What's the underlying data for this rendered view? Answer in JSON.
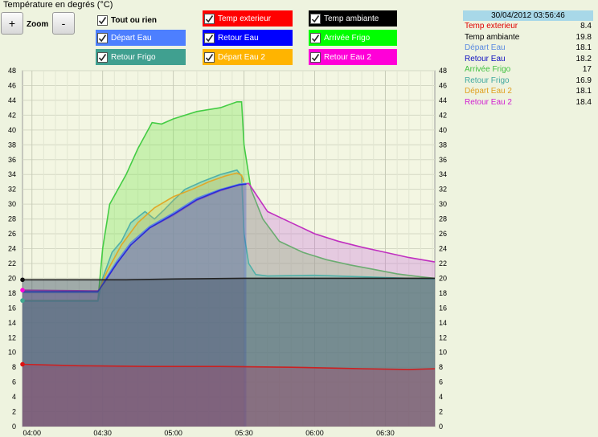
{
  "header": {
    "title": "Température en degrés (°C)"
  },
  "zoom": {
    "plus": "+",
    "label": "Zoom",
    "minus": "-"
  },
  "toggles": [
    {
      "label": "Tout ou rien",
      "bg": "",
      "fg": "#000000",
      "checked": true
    },
    {
      "label": "Temp exterieur",
      "bg": "#ff0000",
      "fg": "#ffffff",
      "checked": true
    },
    {
      "label": "Temp ambiante",
      "bg": "#000000",
      "fg": "#ffffff",
      "checked": true
    },
    {
      "label": "Départ Eau",
      "bg": "#4d7fff",
      "fg": "#ffffff",
      "checked": true
    },
    {
      "label": "Retour Eau",
      "bg": "#0000ff",
      "fg": "#ffffff",
      "checked": true
    },
    {
      "label": "Arrivée Frigo",
      "bg": "#00ff00",
      "fg": "#ffffff",
      "checked": true
    },
    {
      "label": "Retour Frigo",
      "bg": "#40a090",
      "fg": "#ffffff",
      "checked": true
    },
    {
      "label": "Départ Eau 2",
      "bg": "#ffb400",
      "fg": "#ffffff",
      "checked": true
    },
    {
      "label": "Retour Eau 2",
      "bg": "#ff00d8",
      "fg": "#ffffff",
      "checked": true
    }
  ],
  "readout": {
    "timestamp": "30/04/2012 03:56:46",
    "rows": [
      {
        "name": "Temp exterieur",
        "value": "8.4",
        "color": "#e00000"
      },
      {
        "name": "Temp ambiante",
        "value": "19.8",
        "color": "#000000"
      },
      {
        "name": "Départ Eau",
        "value": "18.1",
        "color": "#5a8ae0"
      },
      {
        "name": "Retour Eau",
        "value": "18.2",
        "color": "#1010c0"
      },
      {
        "name": "Arrivée Frigo",
        "value": "17",
        "color": "#40c040"
      },
      {
        "name": "Retour Frigo",
        "value": "16.9",
        "color": "#40a8a0"
      },
      {
        "name": "Départ Eau 2",
        "value": "18.1",
        "color": "#e0a020"
      },
      {
        "name": "Retour Eau 2",
        "value": "18.4",
        "color": "#d020d0"
      }
    ]
  },
  "chart_data": {
    "type": "area",
    "xlabel": "",
    "ylabel": "",
    "x_ticks": [
      "04:00",
      "04:30",
      "05:00",
      "05:30",
      "06:00",
      "06:30"
    ],
    "x_tick_minutes": [
      240,
      270,
      300,
      330,
      360,
      390
    ],
    "xlim_minutes": [
      236,
      411
    ],
    "ylim": [
      0,
      48
    ],
    "y_ticks": [
      0,
      2,
      4,
      6,
      8,
      10,
      12,
      14,
      16,
      18,
      20,
      22,
      24,
      26,
      28,
      30,
      32,
      34,
      36,
      38,
      40,
      42,
      44,
      46,
      48
    ],
    "grid": true,
    "series": [
      {
        "name": "Arrivée Frigo",
        "color": "#44cc44",
        "fill": "rgba(120,230,80,0.35)",
        "points": [
          [
            236,
            17
          ],
          [
            268,
            17
          ],
          [
            270,
            24
          ],
          [
            273,
            30
          ],
          [
            280,
            34
          ],
          [
            285,
            37.5
          ],
          [
            291,
            41
          ],
          [
            295,
            40.8
          ],
          [
            300,
            41.5
          ],
          [
            305,
            42
          ],
          [
            310,
            42.5
          ],
          [
            320,
            43
          ],
          [
            327,
            43.8
          ],
          [
            329,
            43.8
          ],
          [
            330,
            38
          ],
          [
            333,
            32
          ],
          [
            338,
            28
          ],
          [
            345,
            25
          ],
          [
            355,
            23.5
          ],
          [
            365,
            22.5
          ],
          [
            375,
            21.8
          ],
          [
            385,
            21.2
          ],
          [
            395,
            20.6
          ],
          [
            405,
            20.2
          ],
          [
            411,
            20
          ]
        ]
      },
      {
        "name": "Retour Eau 2",
        "color": "#c030c0",
        "fill": "rgba(200,100,220,0.30)",
        "points": [
          [
            236,
            18.4
          ],
          [
            268,
            18.3
          ],
          [
            271,
            19.5
          ],
          [
            276,
            22
          ],
          [
            282,
            24.5
          ],
          [
            290,
            26.8
          ],
          [
            300,
            28.5
          ],
          [
            310,
            30.5
          ],
          [
            320,
            31.8
          ],
          [
            328,
            32.6
          ],
          [
            332,
            32.8
          ],
          [
            340,
            29
          ],
          [
            350,
            27.5
          ],
          [
            360,
            26
          ],
          [
            370,
            25
          ],
          [
            380,
            24.2
          ],
          [
            390,
            23.5
          ],
          [
            400,
            22.8
          ],
          [
            411,
            22.2
          ]
        ]
      },
      {
        "name": "Retour Frigo",
        "color": "#50b0a8",
        "fill": "rgba(90,175,170,0.30)",
        "points": [
          [
            236,
            16.9
          ],
          [
            268,
            16.9
          ],
          [
            270,
            20
          ],
          [
            274,
            23.5
          ],
          [
            278,
            25
          ],
          [
            282,
            27.5
          ],
          [
            288,
            29
          ],
          [
            292,
            28
          ],
          [
            296,
            29.2
          ],
          [
            300,
            30.5
          ],
          [
            305,
            32
          ],
          [
            312,
            33
          ],
          [
            320,
            34
          ],
          [
            327,
            34.6
          ],
          [
            329,
            33.8
          ],
          [
            330,
            26
          ],
          [
            332,
            22
          ],
          [
            335,
            20.5
          ],
          [
            340,
            20.3
          ],
          [
            360,
            20.4
          ],
          [
            380,
            20.2
          ],
          [
            400,
            20
          ],
          [
            411,
            19.9
          ]
        ]
      },
      {
        "name": "Départ Eau 2",
        "color": "#e0a828",
        "fill": "rgba(240,190,60,0.22)",
        "points": [
          [
            236,
            18.1
          ],
          [
            268,
            18.1
          ],
          [
            272,
            21
          ],
          [
            278,
            24.5
          ],
          [
            285,
            27.5
          ],
          [
            292,
            29.5
          ],
          [
            300,
            31
          ],
          [
            308,
            32
          ],
          [
            315,
            33
          ],
          [
            322,
            33.8
          ],
          [
            327,
            34.2
          ],
          [
            329,
            33.9
          ],
          [
            330,
            33
          ]
        ]
      },
      {
        "name": "Départ Eau",
        "color": "#5a8ae0",
        "fill": "rgba(90,138,224,0.18)",
        "points": [
          [
            236,
            18.1
          ],
          [
            268,
            18.1
          ],
          [
            271,
            19.8
          ],
          [
            276,
            22.3
          ],
          [
            282,
            24.8
          ],
          [
            290,
            27
          ],
          [
            300,
            28.8
          ],
          [
            310,
            30.8
          ],
          [
            320,
            32
          ],
          [
            328,
            32.7
          ],
          [
            331,
            32.8
          ]
        ]
      },
      {
        "name": "Retour Eau",
        "color": "#2a2ad8",
        "fill": "rgba(40,40,200,0.18)",
        "points": [
          [
            236,
            18.2
          ],
          [
            268,
            18.2
          ],
          [
            271,
            19.6
          ],
          [
            276,
            22
          ],
          [
            282,
            24.5
          ],
          [
            290,
            26.8
          ],
          [
            300,
            28.6
          ],
          [
            310,
            30.6
          ],
          [
            320,
            31.9
          ],
          [
            328,
            32.6
          ],
          [
            331,
            32.7
          ]
        ]
      },
      {
        "name": "Temp ambiante",
        "color": "#222222",
        "fill": "rgba(60,80,100,0.45)",
        "points": [
          [
            236,
            19.8
          ],
          [
            268,
            19.8
          ],
          [
            280,
            19.8
          ],
          [
            300,
            19.9
          ],
          [
            330,
            20
          ],
          [
            360,
            20
          ],
          [
            390,
            20
          ],
          [
            411,
            20
          ]
        ]
      },
      {
        "name": "Temp exterieur",
        "color": "#cc2020",
        "fill": "rgba(170,60,100,0.35)",
        "points": [
          [
            236,
            8.4
          ],
          [
            260,
            8.2
          ],
          [
            290,
            8.1
          ],
          [
            320,
            8.1
          ],
          [
            350,
            8
          ],
          [
            380,
            7.8
          ],
          [
            400,
            7.7
          ],
          [
            411,
            7.8
          ]
        ]
      }
    ]
  }
}
